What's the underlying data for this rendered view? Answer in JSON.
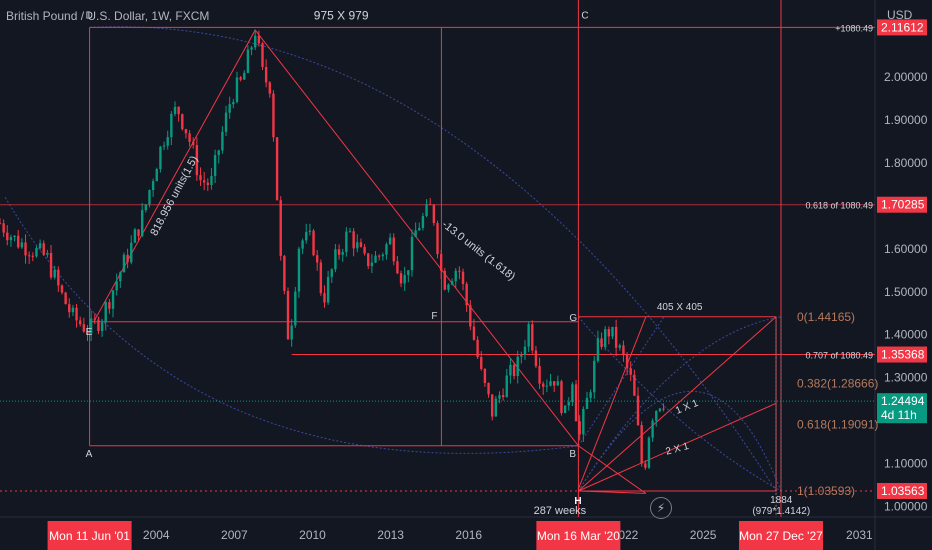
{
  "header": {
    "title": "British Pound / U.S. Dollar, 1W, FXCM",
    "currency": "USD"
  },
  "chart_data": {
    "type": "candlestick",
    "ylim": [
      0.975,
      2.18
    ],
    "xlim": [
      1998.0,
      2031.6
    ],
    "y_ticks": [
      "2.00000",
      "1.90000",
      "1.80000",
      "1.60000",
      "1.50000",
      "1.40000",
      "1.30000",
      "1.10000",
      "1.00000"
    ],
    "y_tick_values": [
      2.0,
      1.9,
      1.8,
      1.6,
      1.5,
      1.4,
      1.3,
      1.1,
      1.0
    ],
    "x_ticks": [
      "2004",
      "2007",
      "2010",
      "2013",
      "2016",
      "2022",
      "2025",
      "2031"
    ],
    "x_tick_values": [
      2004,
      2007,
      2010,
      2013,
      2016,
      2022,
      2025,
      2031
    ],
    "x_markers": [
      {
        "label": "Mon 11 Jun '01",
        "x": 2001.44
      },
      {
        "label": "Mon 16 Mar '20",
        "x": 2020.21
      },
      {
        "label": "Mon 27 Dec '27",
        "x": 2027.99
      }
    ],
    "price_labels": [
      {
        "value": 2.11612,
        "text": "2.11612",
        "note": "+1080.49",
        "color": "#f23645"
      },
      {
        "value": 1.70285,
        "text": "1.70285",
        "note": "0.618 of 1080.49",
        "color": "#f23645"
      },
      {
        "value": 1.35368,
        "text": "1.35368",
        "note": "0.707 of 1080.49",
        "color": "#f23645"
      },
      {
        "value": 1.24494,
        "text": "1.24494",
        "sub": "4d 11h",
        "color": "#089981"
      },
      {
        "value": 1.03563,
        "text": "1.03563",
        "note": "",
        "color": "#f23645"
      }
    ],
    "fib_labels": [
      {
        "text": "0(1.44165)",
        "value": 1.44165
      },
      {
        "text": "0.382(1.28666)",
        "value": 1.28666
      },
      {
        "text": "0.618(1.19091)",
        "value": 1.19091
      },
      {
        "text": "1(1.03593)",
        "value": 1.03593
      }
    ],
    "annotations": {
      "box1": "975 X 979",
      "box2": "405 X 405",
      "diag1": "818.956 units(1.5)",
      "diag2": "-13.0 units (1.618)",
      "fan1": "1 X 1",
      "fan2": "2 X 1",
      "weeks": "287 weeks",
      "bottom_num": "1884",
      "bottom_formula": "(979*1.4142)"
    },
    "points": {
      "D": "D",
      "C": "C",
      "E": "E",
      "F": "F",
      "A": "A",
      "B": "B",
      "G": "G",
      "H": "H"
    },
    "price_path": [
      [
        1998.0,
        1.66
      ],
      [
        1998.6,
        1.62
      ],
      [
        1999.2,
        1.6
      ],
      [
        1999.8,
        1.58
      ],
      [
        2000.3,
        1.5
      ],
      [
        2000.8,
        1.44
      ],
      [
        2001.44,
        1.41
      ],
      [
        2001.9,
        1.44
      ],
      [
        2002.5,
        1.53
      ],
      [
        2003.0,
        1.6
      ],
      [
        2003.5,
        1.68
      ],
      [
        2004.0,
        1.8
      ],
      [
        2004.4,
        1.88
      ],
      [
        2004.8,
        1.93
      ],
      [
        2005.2,
        1.87
      ],
      [
        2005.7,
        1.76
      ],
      [
        2006.1,
        1.75
      ],
      [
        2006.5,
        1.86
      ],
      [
        2006.9,
        1.96
      ],
      [
        2007.3,
        1.99
      ],
      [
        2007.6,
        2.06
      ],
      [
        2007.8,
        2.11
      ],
      [
        2008.1,
        2.0
      ],
      [
        2008.4,
        1.98
      ],
      [
        2008.8,
        1.55
      ],
      [
        2009.1,
        1.38
      ],
      [
        2009.5,
        1.62
      ],
      [
        2010.0,
        1.62
      ],
      [
        2010.4,
        1.48
      ],
      [
        2010.9,
        1.58
      ],
      [
        2011.4,
        1.64
      ],
      [
        2012.0,
        1.57
      ],
      [
        2012.5,
        1.58
      ],
      [
        2013.0,
        1.62
      ],
      [
        2013.5,
        1.52
      ],
      [
        2014.0,
        1.65
      ],
      [
        2014.6,
        1.7
      ],
      [
        2015.0,
        1.52
      ],
      [
        2015.6,
        1.56
      ],
      [
        2016.1,
        1.42
      ],
      [
        2016.5,
        1.3
      ],
      [
        2016.9,
        1.22
      ],
      [
        2017.4,
        1.29
      ],
      [
        2017.9,
        1.33
      ],
      [
        2018.3,
        1.42
      ],
      [
        2018.8,
        1.29
      ],
      [
        2019.3,
        1.3
      ],
      [
        2019.7,
        1.21
      ],
      [
        2020.0,
        1.31
      ],
      [
        2020.21,
        1.15
      ],
      [
        2020.7,
        1.29
      ],
      [
        2021.0,
        1.38
      ],
      [
        2021.4,
        1.41
      ],
      [
        2021.9,
        1.35
      ],
      [
        2022.3,
        1.28
      ],
      [
        2022.7,
        1.07
      ],
      [
        2023.0,
        1.21
      ],
      [
        2023.4,
        1.25
      ],
      [
        2023.6,
        1.245
      ]
    ]
  }
}
